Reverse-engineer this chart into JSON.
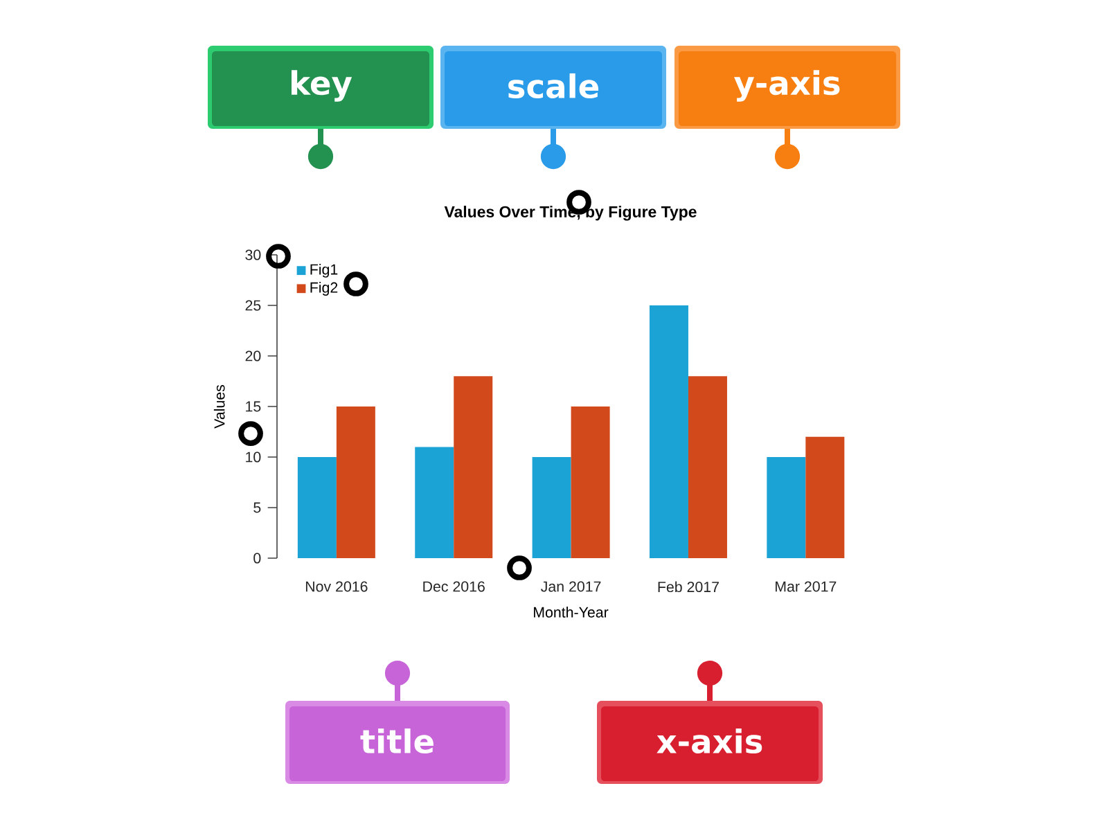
{
  "chart_data": {
    "type": "bar",
    "title": "Values Over Time, by Figure Type",
    "xlabel": "Month-Year",
    "ylabel": "Values",
    "categories": [
      "Nov 2016",
      "Dec 2016",
      "Jan 2017",
      "Feb 2017",
      "Mar 2017"
    ],
    "series": [
      {
        "name": "Fig1",
        "color": "#1ba3d6",
        "values": [
          10,
          11,
          10,
          25,
          10
        ]
      },
      {
        "name": "Fig2",
        "color": "#d2491c",
        "values": [
          15,
          18,
          15,
          18,
          12
        ]
      }
    ],
    "ylim": [
      0,
      30
    ],
    "yticks": [
      0,
      5,
      10,
      15,
      20,
      25,
      30
    ],
    "legend": "top left",
    "annotations": [
      "key",
      "scale",
      "y-axis",
      "title",
      "x-axis"
    ]
  }
}
